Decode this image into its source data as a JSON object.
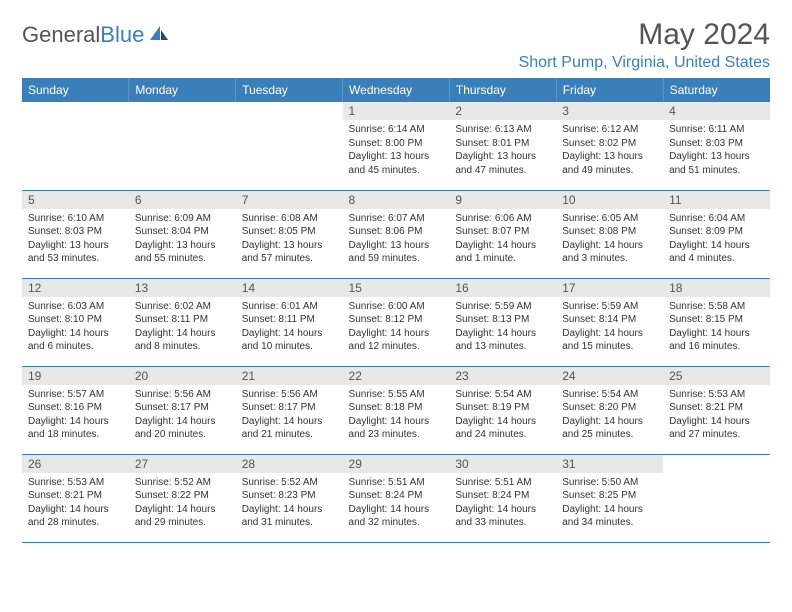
{
  "brand": {
    "name_part1": "General",
    "name_part2": "Blue"
  },
  "title": {
    "month_year": "May 2024",
    "location": "Short Pump, Virginia, United States"
  },
  "colors": {
    "accent": "#3b7fb8",
    "header_bg": "#3b7fb8",
    "daynum_bg": "#e8e8e8",
    "text": "#333333"
  },
  "weekdays": [
    "Sunday",
    "Monday",
    "Tuesday",
    "Wednesday",
    "Thursday",
    "Friday",
    "Saturday"
  ],
  "weeks": [
    [
      null,
      null,
      null,
      {
        "n": "1",
        "sr": "6:14 AM",
        "ss": "8:00 PM",
        "dl": "13 hours and 45 minutes."
      },
      {
        "n": "2",
        "sr": "6:13 AM",
        "ss": "8:01 PM",
        "dl": "13 hours and 47 minutes."
      },
      {
        "n": "3",
        "sr": "6:12 AM",
        "ss": "8:02 PM",
        "dl": "13 hours and 49 minutes."
      },
      {
        "n": "4",
        "sr": "6:11 AM",
        "ss": "8:03 PM",
        "dl": "13 hours and 51 minutes."
      }
    ],
    [
      {
        "n": "5",
        "sr": "6:10 AM",
        "ss": "8:03 PM",
        "dl": "13 hours and 53 minutes."
      },
      {
        "n": "6",
        "sr": "6:09 AM",
        "ss": "8:04 PM",
        "dl": "13 hours and 55 minutes."
      },
      {
        "n": "7",
        "sr": "6:08 AM",
        "ss": "8:05 PM",
        "dl": "13 hours and 57 minutes."
      },
      {
        "n": "8",
        "sr": "6:07 AM",
        "ss": "8:06 PM",
        "dl": "13 hours and 59 minutes."
      },
      {
        "n": "9",
        "sr": "6:06 AM",
        "ss": "8:07 PM",
        "dl": "14 hours and 1 minute."
      },
      {
        "n": "10",
        "sr": "6:05 AM",
        "ss": "8:08 PM",
        "dl": "14 hours and 3 minutes."
      },
      {
        "n": "11",
        "sr": "6:04 AM",
        "ss": "8:09 PM",
        "dl": "14 hours and 4 minutes."
      }
    ],
    [
      {
        "n": "12",
        "sr": "6:03 AM",
        "ss": "8:10 PM",
        "dl": "14 hours and 6 minutes."
      },
      {
        "n": "13",
        "sr": "6:02 AM",
        "ss": "8:11 PM",
        "dl": "14 hours and 8 minutes."
      },
      {
        "n": "14",
        "sr": "6:01 AM",
        "ss": "8:11 PM",
        "dl": "14 hours and 10 minutes."
      },
      {
        "n": "15",
        "sr": "6:00 AM",
        "ss": "8:12 PM",
        "dl": "14 hours and 12 minutes."
      },
      {
        "n": "16",
        "sr": "5:59 AM",
        "ss": "8:13 PM",
        "dl": "14 hours and 13 minutes."
      },
      {
        "n": "17",
        "sr": "5:59 AM",
        "ss": "8:14 PM",
        "dl": "14 hours and 15 minutes."
      },
      {
        "n": "18",
        "sr": "5:58 AM",
        "ss": "8:15 PM",
        "dl": "14 hours and 16 minutes."
      }
    ],
    [
      {
        "n": "19",
        "sr": "5:57 AM",
        "ss": "8:16 PM",
        "dl": "14 hours and 18 minutes."
      },
      {
        "n": "20",
        "sr": "5:56 AM",
        "ss": "8:17 PM",
        "dl": "14 hours and 20 minutes."
      },
      {
        "n": "21",
        "sr": "5:56 AM",
        "ss": "8:17 PM",
        "dl": "14 hours and 21 minutes."
      },
      {
        "n": "22",
        "sr": "5:55 AM",
        "ss": "8:18 PM",
        "dl": "14 hours and 23 minutes."
      },
      {
        "n": "23",
        "sr": "5:54 AM",
        "ss": "8:19 PM",
        "dl": "14 hours and 24 minutes."
      },
      {
        "n": "24",
        "sr": "5:54 AM",
        "ss": "8:20 PM",
        "dl": "14 hours and 25 minutes."
      },
      {
        "n": "25",
        "sr": "5:53 AM",
        "ss": "8:21 PM",
        "dl": "14 hours and 27 minutes."
      }
    ],
    [
      {
        "n": "26",
        "sr": "5:53 AM",
        "ss": "8:21 PM",
        "dl": "14 hours and 28 minutes."
      },
      {
        "n": "27",
        "sr": "5:52 AM",
        "ss": "8:22 PM",
        "dl": "14 hours and 29 minutes."
      },
      {
        "n": "28",
        "sr": "5:52 AM",
        "ss": "8:23 PM",
        "dl": "14 hours and 31 minutes."
      },
      {
        "n": "29",
        "sr": "5:51 AM",
        "ss": "8:24 PM",
        "dl": "14 hours and 32 minutes."
      },
      {
        "n": "30",
        "sr": "5:51 AM",
        "ss": "8:24 PM",
        "dl": "14 hours and 33 minutes."
      },
      {
        "n": "31",
        "sr": "5:50 AM",
        "ss": "8:25 PM",
        "dl": "14 hours and 34 minutes."
      },
      null
    ]
  ],
  "labels": {
    "sunrise": "Sunrise:",
    "sunset": "Sunset:",
    "daylight": "Daylight:"
  }
}
